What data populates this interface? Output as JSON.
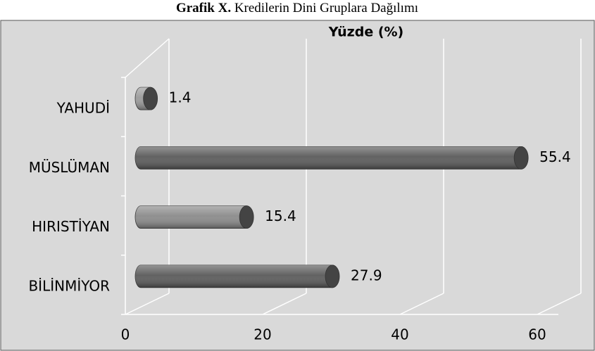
{
  "chart_data": {
    "type": "bar3d_horizontal",
    "figure_label": "Grafik X.",
    "title": "Kredilerin Dini Gruplara Dağılımı",
    "x_label": "Yüzde (%)",
    "categories": [
      "YAHUDİ",
      "MÜSLÜMAN",
      "HIRISTİYAN",
      "BİLİNMİYOR"
    ],
    "values": [
      1.4,
      55.4,
      15.4,
      27.9
    ],
    "colors": [
      "#9a9a9a",
      "#5a5a5a",
      "#8a8a8a",
      "#5a5a5a"
    ],
    "xlim": [
      0,
      60
    ],
    "xticks": [
      0,
      20,
      40,
      60
    ],
    "grid": true
  }
}
